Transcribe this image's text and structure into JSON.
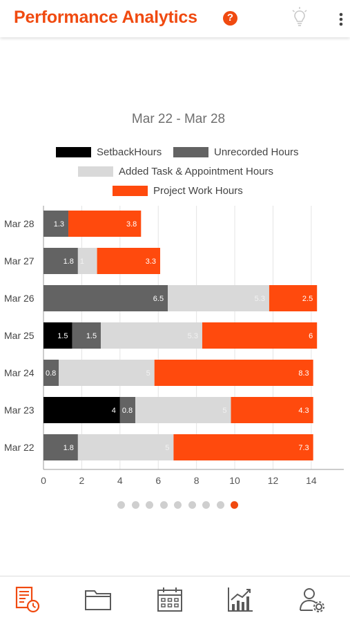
{
  "header": {
    "title": "Performance Analytics",
    "help_icon": "help-circle-icon",
    "help_glyph": "?",
    "tips_icon": "lightbulb-icon",
    "menu_icon": "more-vertical-icon"
  },
  "colors": {
    "accent": "#f04a10",
    "setback": "#000000",
    "unrecorded": "#636363",
    "added": "#d9d9d9",
    "project": "#ff4a0d"
  },
  "chart": {
    "date_range": "Mar 22 - Mar 28",
    "legend": [
      {
        "label": "SetbackHours",
        "color": "#000000"
      },
      {
        "label": "Unrecorded Hours",
        "color": "#636363"
      },
      {
        "label": "Added Task & Appointment Hours",
        "color": "#d9d9d9"
      },
      {
        "label": "Project Work Hours",
        "color": "#ff4a0d"
      }
    ]
  },
  "chart_data": {
    "type": "bar",
    "orientation": "horizontal",
    "stacked": true,
    "categories": [
      "Mar 28",
      "Mar 27",
      "Mar 26",
      "Mar 25",
      "Mar 24",
      "Mar 23",
      "Mar 22"
    ],
    "series": [
      {
        "name": "SetbackHours",
        "values": [
          0,
          0,
          0,
          1.5,
          0,
          4,
          0
        ],
        "labels": [
          "0",
          "0",
          "0",
          "1.5",
          "0",
          "4",
          "0"
        ]
      },
      {
        "name": "Unrecorded Hours",
        "values": [
          1.3,
          1.8,
          6.5,
          1.5,
          0.8,
          0.8,
          1.8
        ],
        "labels": [
          "1.3",
          "1.8",
          "6.5",
          "1.5",
          "0.8",
          "0.8",
          "1.8"
        ]
      },
      {
        "name": "Added Task & Appointment Hours",
        "values": [
          0,
          1,
          5.3,
          5.3,
          5,
          5,
          5
        ],
        "labels": [
          "",
          "1",
          "5.3",
          "5.3",
          "5",
          "5",
          "5"
        ]
      },
      {
        "name": "Project Work Hours",
        "values": [
          3.8,
          3.3,
          2.5,
          6,
          8.3,
          4.3,
          7.3
        ],
        "labels": [
          "3.8",
          "3.3",
          "2.5",
          "6",
          "8.3",
          "4.3",
          "7.3"
        ]
      }
    ],
    "xlim": [
      0,
      15
    ],
    "xticks": [
      "0",
      "2",
      "4",
      "6",
      "8",
      "10",
      "12",
      "14"
    ],
    "grid": true,
    "legend_position": "top"
  },
  "pager": {
    "count": 9,
    "active": 8
  },
  "bottom_nav": [
    {
      "name": "timesheet-icon",
      "active": true
    },
    {
      "name": "folder-icon",
      "active": false
    },
    {
      "name": "calendar-icon",
      "active": false
    },
    {
      "name": "analytics-icon",
      "active": false
    },
    {
      "name": "user-settings-icon",
      "active": false
    }
  ]
}
